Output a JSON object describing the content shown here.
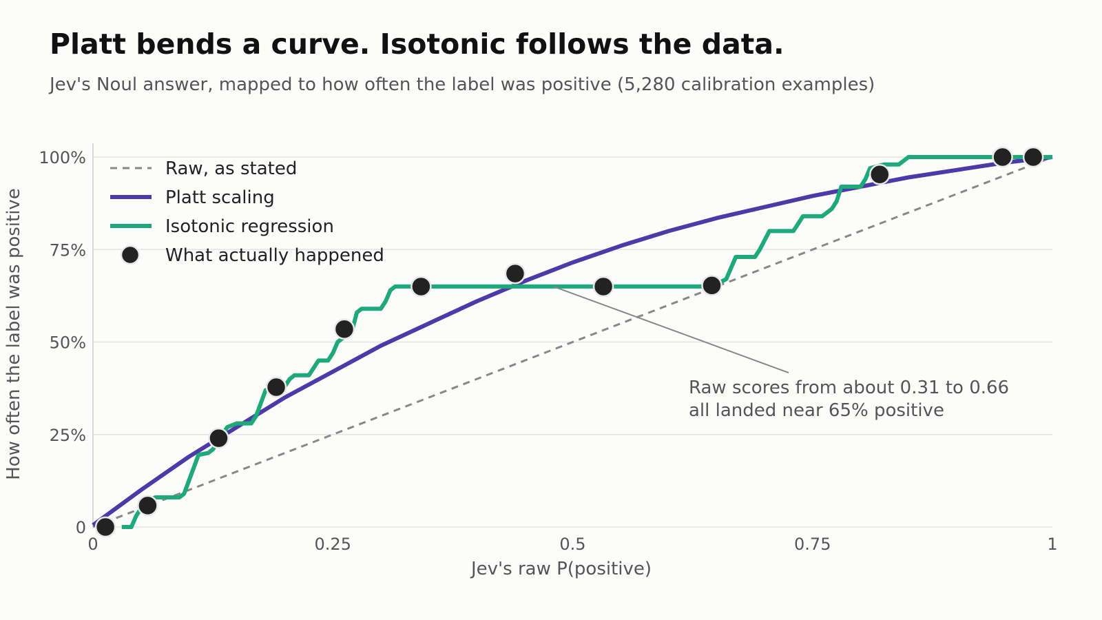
{
  "title": "Platt bends a curve. Isotonic follows the data.",
  "subtitle": "Jev's Noul answer, mapped to how often the label was positive (5,280 calibration examples)",
  "colors": {
    "raw": "#888888",
    "platt": "#4b3aa7",
    "isotonic": "#1fa97a",
    "observed": "#222222",
    "grid": "#e3e3e3"
  },
  "chart_data": {
    "type": "line",
    "xlabel": "Jev's raw P(positive)",
    "ylabel": "How often the label was positive",
    "xlim": [
      0,
      1
    ],
    "ylim": [
      0,
      1
    ],
    "x_ticks": [
      {
        "value": 0,
        "label": "0"
      },
      {
        "value": 0.25,
        "label": "0.25"
      },
      {
        "value": 0.5,
        "label": "0.5"
      },
      {
        "value": 0.75,
        "label": "0.75"
      },
      {
        "value": 1,
        "label": "1"
      }
    ],
    "y_ticks": [
      {
        "value": 0,
        "label": "0"
      },
      {
        "value": 0.25,
        "label": "25%"
      },
      {
        "value": 0.5,
        "label": "50%"
      },
      {
        "value": 0.75,
        "label": "75%"
      },
      {
        "value": 1,
        "label": "100%"
      }
    ],
    "grid": "horizontal",
    "legend_position": "top-left",
    "series": [
      {
        "name": "Raw, as stated",
        "style": "dashed",
        "points": [
          [
            0,
            0
          ],
          [
            1,
            1
          ]
        ]
      },
      {
        "name": "Platt scaling",
        "style": "smooth",
        "points": [
          [
            0,
            0.005
          ],
          [
            0.05,
            0.1
          ],
          [
            0.1,
            0.19
          ],
          [
            0.15,
            0.27
          ],
          [
            0.2,
            0.35
          ],
          [
            0.25,
            0.42
          ],
          [
            0.3,
            0.49
          ],
          [
            0.35,
            0.55
          ],
          [
            0.4,
            0.61
          ],
          [
            0.45,
            0.665
          ],
          [
            0.5,
            0.715
          ],
          [
            0.55,
            0.76
          ],
          [
            0.6,
            0.8
          ],
          [
            0.65,
            0.835
          ],
          [
            0.7,
            0.865
          ],
          [
            0.75,
            0.895
          ],
          [
            0.8,
            0.92
          ],
          [
            0.85,
            0.945
          ],
          [
            0.9,
            0.965
          ],
          [
            0.95,
            0.985
          ],
          [
            1,
            1.0
          ]
        ]
      },
      {
        "name": "Isotonic regression",
        "style": "step",
        "points": [
          [
            0.03,
            0
          ],
          [
            0.04,
            0
          ],
          [
            0.045,
            0.03
          ],
          [
            0.05,
            0.05
          ],
          [
            0.055,
            0.07
          ],
          [
            0.065,
            0.08
          ],
          [
            0.09,
            0.08
          ],
          [
            0.095,
            0.09
          ],
          [
            0.11,
            0.195
          ],
          [
            0.12,
            0.2
          ],
          [
            0.125,
            0.21
          ],
          [
            0.13,
            0.23
          ],
          [
            0.14,
            0.27
          ],
          [
            0.15,
            0.28
          ],
          [
            0.165,
            0.28
          ],
          [
            0.17,
            0.3
          ],
          [
            0.18,
            0.37
          ],
          [
            0.2,
            0.38
          ],
          [
            0.205,
            0.4
          ],
          [
            0.21,
            0.41
          ],
          [
            0.225,
            0.41
          ],
          [
            0.23,
            0.43
          ],
          [
            0.235,
            0.45
          ],
          [
            0.245,
            0.45
          ],
          [
            0.25,
            0.47
          ],
          [
            0.255,
            0.5
          ],
          [
            0.26,
            0.51
          ],
          [
            0.27,
            0.53
          ],
          [
            0.275,
            0.58
          ],
          [
            0.28,
            0.59
          ],
          [
            0.3,
            0.59
          ],
          [
            0.305,
            0.61
          ],
          [
            0.31,
            0.64
          ],
          [
            0.315,
            0.65
          ],
          [
            0.645,
            0.65
          ],
          [
            0.66,
            0.67
          ],
          [
            0.67,
            0.73
          ],
          [
            0.69,
            0.73
          ],
          [
            0.695,
            0.75
          ],
          [
            0.705,
            0.8
          ],
          [
            0.73,
            0.8
          ],
          [
            0.735,
            0.82
          ],
          [
            0.74,
            0.84
          ],
          [
            0.76,
            0.84
          ],
          [
            0.765,
            0.85
          ],
          [
            0.77,
            0.86
          ],
          [
            0.775,
            0.88
          ],
          [
            0.78,
            0.92
          ],
          [
            0.8,
            0.92
          ],
          [
            0.805,
            0.94
          ],
          [
            0.81,
            0.97
          ],
          [
            0.825,
            0.98
          ],
          [
            0.84,
            0.98
          ],
          [
            0.85,
            1.0
          ],
          [
            1,
            1.0
          ]
        ]
      },
      {
        "name": "What actually happened",
        "style": "points",
        "points": [
          [
            0.013,
            0.0
          ],
          [
            0.057,
            0.058
          ],
          [
            0.131,
            0.24
          ],
          [
            0.191,
            0.378
          ],
          [
            0.262,
            0.535
          ],
          [
            0.342,
            0.65
          ],
          [
            0.44,
            0.685
          ],
          [
            0.532,
            0.65
          ],
          [
            0.645,
            0.653
          ],
          [
            0.82,
            0.953
          ],
          [
            0.948,
            1.0
          ],
          [
            0.98,
            1.0
          ]
        ]
      }
    ],
    "annotation": {
      "lines": [
        "Raw scores from about 0.31 to 0.66",
        "all landed near 65% positive"
      ],
      "target": [
        0.48,
        0.65
      ]
    }
  }
}
